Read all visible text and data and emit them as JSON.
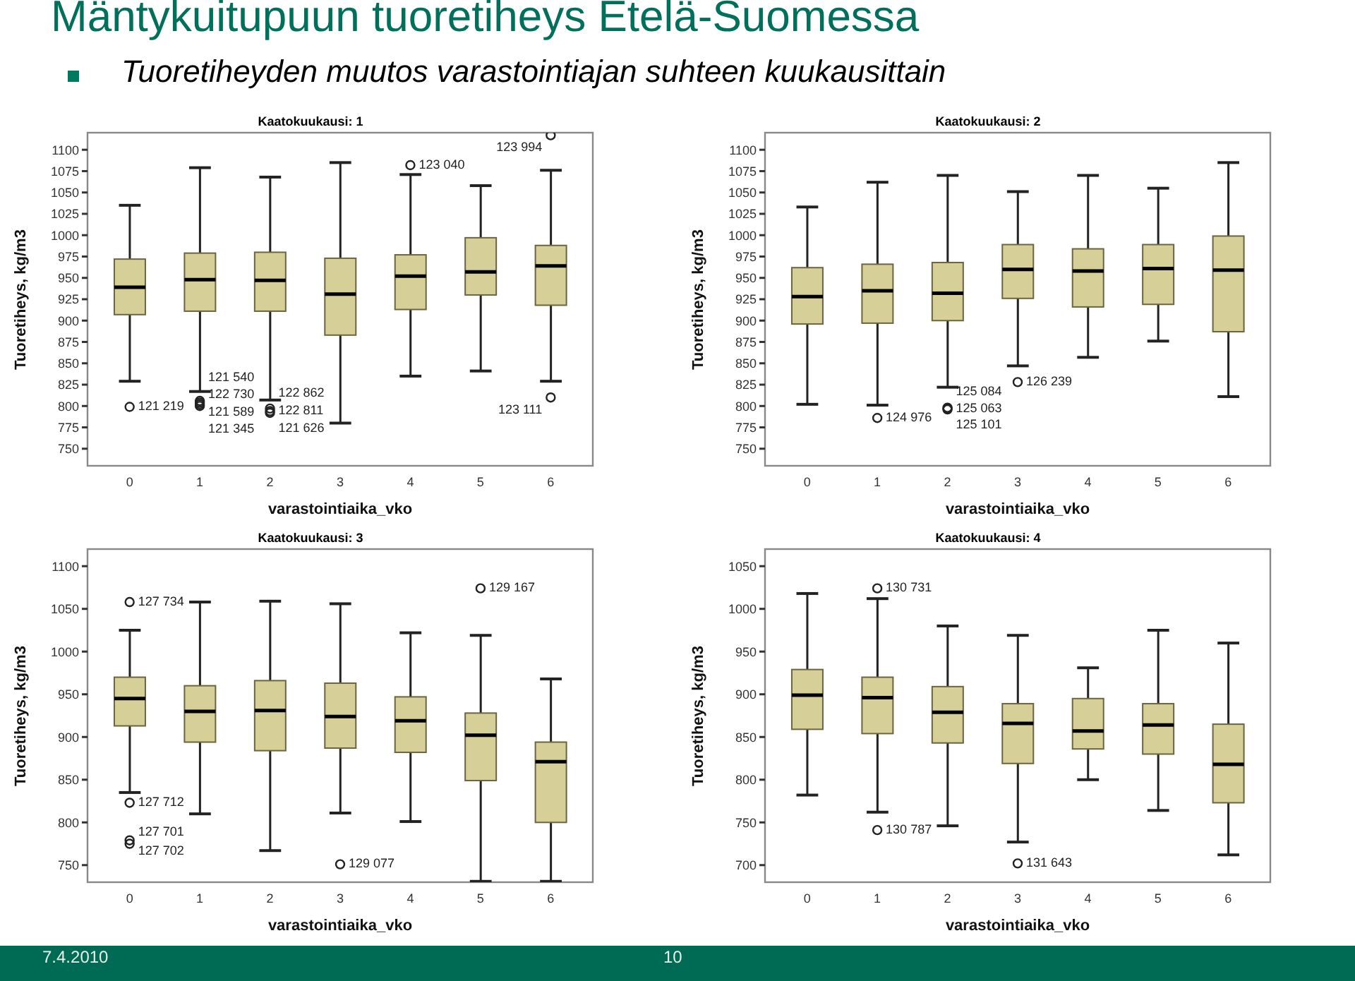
{
  "chart_data": [
    {
      "type": "other",
      "title": "Mäntykuitupuun tuoretiheys Etelä-Suomessa",
      "subtitle": "Tuoretiheyden muutos varastointiajan suhteen kuukausittain",
      "annotations": [
        "7.4.2010",
        "10"
      ]
    },
    {
      "type": "box",
      "title": "Kaatokuukausi: 1",
      "xlabel": "varastointiaika_vko",
      "ylabel": "Tuoretiheys, kg/m3",
      "color": "#d6cf98",
      "categories": [
        "0",
        "1",
        "2",
        "3",
        "4",
        "5",
        "6"
      ],
      "ylim": [
        730,
        1120
      ],
      "yticks": [
        750,
        775,
        800,
        825,
        850,
        875,
        900,
        925,
        950,
        975,
        1000,
        1025,
        1050,
        1075,
        1100
      ],
      "boxes": [
        {
          "low": 829,
          "q1": 907,
          "median": 939,
          "q3": 972,
          "high": 1035,
          "outliers": [
            799
          ]
        },
        {
          "low": 817,
          "q1": 911,
          "median": 948,
          "q3": 979,
          "high": 1079,
          "outliers": [
            806,
            804,
            802,
            800
          ]
        },
        {
          "low": 807,
          "q1": 911,
          "median": 947,
          "q3": 980,
          "high": 1068,
          "outliers": [
            797,
            794,
            792
          ]
        },
        {
          "low": 780,
          "q1": 883,
          "median": 931,
          "q3": 973,
          "high": 1085
        },
        {
          "low": 835,
          "q1": 913,
          "median": 952,
          "q3": 977,
          "high": 1071,
          "outliers": [
            1082
          ]
        },
        {
          "low": 841,
          "q1": 930,
          "median": 957,
          "q3": 997,
          "high": 1058
        },
        {
          "low": 829,
          "q1": 918,
          "median": 964,
          "q3": 988,
          "high": 1076,
          "outliers": [
            1117,
            810
          ]
        }
      ],
      "annotations": [
        "121 219",
        "121 540",
        "122 730",
        "121 589",
        "121 345",
        "122 862",
        "122 811",
        "121 626",
        "123 040",
        "123 994",
        "123 111"
      ]
    },
    {
      "type": "box",
      "title": "Kaatokuukausi: 2",
      "xlabel": "varastointiaika_vko",
      "ylabel": "Tuoretiheys, kg/m3",
      "color": "#d6cf98",
      "categories": [
        "0",
        "1",
        "2",
        "3",
        "4",
        "5",
        "6"
      ],
      "ylim": [
        730,
        1120
      ],
      "yticks": [
        750,
        775,
        800,
        825,
        850,
        875,
        900,
        925,
        950,
        975,
        1000,
        1025,
        1050,
        1075,
        1100
      ],
      "boxes": [
        {
          "low": 802,
          "q1": 896,
          "median": 928,
          "q3": 962,
          "high": 1033
        },
        {
          "low": 801,
          "q1": 897,
          "median": 935,
          "q3": 966,
          "high": 1062,
          "outliers": [
            786
          ]
        },
        {
          "low": 822,
          "q1": 900,
          "median": 932,
          "q3": 968,
          "high": 1070,
          "outliers": [
            798,
            797,
            796
          ]
        },
        {
          "low": 847,
          "q1": 926,
          "median": 960,
          "q3": 989,
          "high": 1051,
          "outliers": [
            828
          ]
        },
        {
          "low": 857,
          "q1": 916,
          "median": 958,
          "q3": 984,
          "high": 1070
        },
        {
          "low": 876,
          "q1": 919,
          "median": 961,
          "q3": 989,
          "high": 1055
        },
        {
          "low": 811,
          "q1": 887,
          "median": 959,
          "q3": 999,
          "high": 1085
        }
      ],
      "annotations": [
        "124 976",
        "125 084",
        "125 063",
        "125 101",
        "126 239"
      ]
    },
    {
      "type": "box",
      "title": "Kaatokuukausi: 3",
      "xlabel": "varastointiaika_vko",
      "ylabel": "Tuoretiheys, kg/m3",
      "color": "#d6cf98",
      "categories": [
        "0",
        "1",
        "2",
        "3",
        "4",
        "5",
        "6"
      ],
      "ylim": [
        730,
        1120
      ],
      "yticks": [
        750,
        800,
        850,
        900,
        950,
        1000,
        1050,
        1100
      ],
      "boxes": [
        {
          "low": 835,
          "q1": 913,
          "median": 945,
          "q3": 970,
          "high": 1025,
          "outliers": [
            1058,
            823,
            779,
            775
          ]
        },
        {
          "low": 810,
          "q1": 894,
          "median": 930,
          "q3": 960,
          "high": 1058
        },
        {
          "low": 767,
          "q1": 884,
          "median": 931,
          "q3": 966,
          "high": 1059
        },
        {
          "low": 811,
          "q1": 887,
          "median": 924,
          "q3": 963,
          "high": 1056,
          "outliers": [
            751
          ]
        },
        {
          "low": 801,
          "q1": 882,
          "median": 919,
          "q3": 947,
          "high": 1022
        },
        {
          "low": 731,
          "q1": 849,
          "median": 902,
          "q3": 928,
          "high": 1019,
          "outliers": [
            1074
          ]
        },
        {
          "low": 731,
          "q1": 800,
          "median": 871,
          "q3": 894,
          "high": 968
        }
      ],
      "annotations": [
        "127 734",
        "127 712",
        "127 701",
        "127 702",
        "129 077",
        "129 167"
      ]
    },
    {
      "type": "box",
      "title": "Kaatokuukausi: 4",
      "xlabel": "varastointiaika_vko",
      "ylabel": "Tuoretiheys, kg/m3",
      "color": "#d6cf98",
      "categories": [
        "0",
        "1",
        "2",
        "3",
        "4",
        "5",
        "6"
      ],
      "ylim": [
        680,
        1070
      ],
      "yticks": [
        700,
        750,
        800,
        850,
        900,
        950,
        1000,
        1050
      ],
      "boxes": [
        {
          "low": 782,
          "q1": 859,
          "median": 899,
          "q3": 929,
          "high": 1018
        },
        {
          "low": 762,
          "q1": 854,
          "median": 896,
          "q3": 920,
          "high": 1012,
          "outliers": [
            1024,
            741
          ]
        },
        {
          "low": 746,
          "q1": 843,
          "median": 879,
          "q3": 909,
          "high": 980
        },
        {
          "low": 727,
          "q1": 819,
          "median": 866,
          "q3": 889,
          "high": 969,
          "outliers": [
            702
          ]
        },
        {
          "low": 800,
          "q1": 836,
          "median": 857,
          "q3": 895,
          "high": 931
        },
        {
          "low": 764,
          "q1": 830,
          "median": 864,
          "q3": 889,
          "high": 975
        },
        {
          "low": 712,
          "q1": 773,
          "median": 818,
          "q3": 865,
          "high": 960
        }
      ],
      "annotations": [
        "130 731",
        "130 787",
        "131 643"
      ]
    }
  ]
}
